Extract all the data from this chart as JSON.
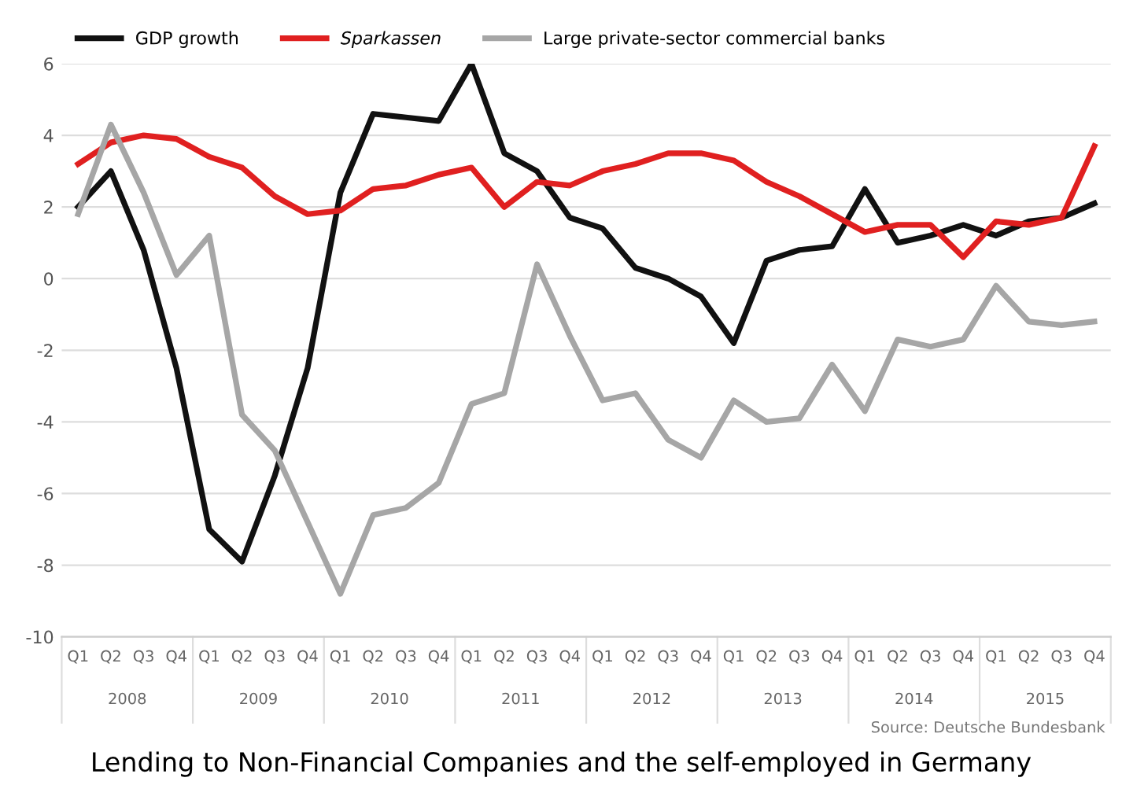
{
  "chart_data": {
    "type": "line",
    "title": "Lending to Non-Financial Companies and the self-employed in Germany",
    "categories": [
      "Q1",
      "Q2",
      "Q3",
      "Q4",
      "Q1",
      "Q2",
      "Q3",
      "Q4",
      "Q1",
      "Q2",
      "Q3",
      "Q4",
      "Q1",
      "Q2",
      "Q3",
      "Q4",
      "Q1",
      "Q2",
      "Q3",
      "Q4",
      "Q1",
      "Q2",
      "Q3",
      "Q4",
      "Q1",
      "Q2",
      "Q3",
      "Q4",
      "Q1",
      "Q2",
      "Q3",
      "Q4"
    ],
    "series": [
      {
        "name": "GDP growth",
        "color": "#111111",
        "values": [
          2,
          3,
          0.8,
          -2.5,
          -7,
          -7.9,
          -5.5,
          -2.5,
          2.4,
          4.6,
          4.5,
          4.4,
          6,
          3.5,
          3,
          1.7,
          1.4,
          0.3,
          0,
          -0.5,
          -1.8,
          0.5,
          0.8,
          0.9,
          2.5,
          1,
          1.2,
          1.5,
          1.2,
          1.6,
          1.7,
          2.1
        ]
      },
      {
        "name": "Sparkassen",
        "color": "#e02020",
        "values": [
          3.2,
          3.8,
          4.0,
          3.9,
          3.4,
          3.1,
          2.3,
          1.8,
          1.9,
          2.5,
          2.6,
          2.9,
          3.1,
          2.0,
          2.7,
          2.6,
          3.0,
          3.2,
          3.5,
          3.5,
          3.3,
          2.7,
          2.3,
          1.8,
          1.3,
          1.5,
          1.5,
          0.6,
          1.6,
          1.5,
          1.7,
          3.7
        ]
      },
      {
        "name": "Large private-sector commercial banks",
        "color": "#a6a6a6",
        "values": [
          1.8,
          4.3,
          2.4,
          0.1,
          1.2,
          -3.8,
          -4.8,
          -6.8,
          -8.8,
          -6.6,
          -6.4,
          -5.7,
          -3.5,
          -3.2,
          0.4,
          -1.6,
          -3.4,
          -3.2,
          -4.5,
          -5.0,
          -3.4,
          -4.0,
          -3.9,
          -2.4,
          -3.7,
          -1.7,
          -1.9,
          -1.7,
          -0.2,
          -1.2,
          -1.3,
          -1.2
        ]
      }
    ],
    "annotations": [
      "2008",
      "2009",
      "2010",
      "2011",
      "2012",
      "2013",
      "2014",
      "2015",
      "Source: Deutsche Bundesbank"
    ],
    "ylim": [
      -10,
      6
    ],
    "yticks": [
      -10,
      -8,
      -6,
      -4,
      -2,
      0,
      2,
      4,
      6
    ],
    "grid": "y",
    "legend": "top",
    "line_style": "solid",
    "marker": "none"
  }
}
